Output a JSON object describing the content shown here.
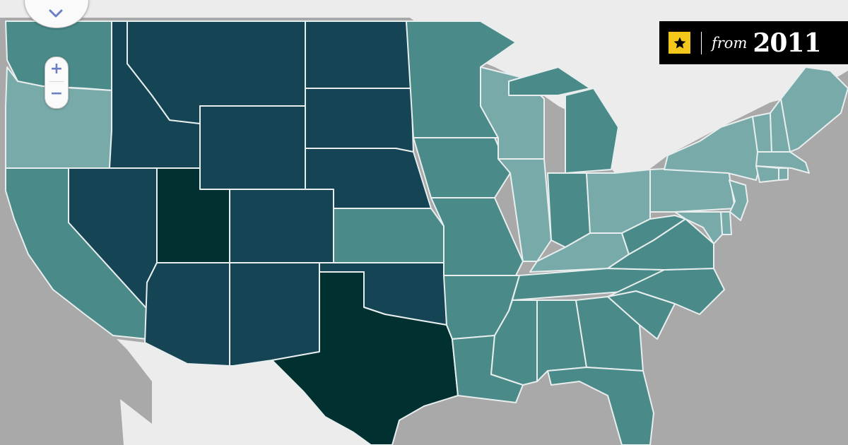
{
  "map": {
    "colors": {
      "land": "#ececec",
      "water": "#a9a9a9",
      "lightest": "#79aaaa",
      "light": "#4a8a88",
      "dark": "#154455",
      "darkest": "#013031",
      "border": "#e8eeee"
    },
    "states": [
      {
        "id": "WA",
        "fill": "#4a8a88"
      },
      {
        "id": "OR",
        "fill": "#79aaaa"
      },
      {
        "id": "CA",
        "fill": "#4a8a88"
      },
      {
        "id": "ID",
        "fill": "#154455"
      },
      {
        "id": "NV",
        "fill": "#154455"
      },
      {
        "id": "MT",
        "fill": "#154455"
      },
      {
        "id": "WY",
        "fill": "#154455"
      },
      {
        "id": "UT",
        "fill": "#013031"
      },
      {
        "id": "AZ",
        "fill": "#154455"
      },
      {
        "id": "CO",
        "fill": "#154455"
      },
      {
        "id": "NM",
        "fill": "#154455"
      },
      {
        "id": "ND",
        "fill": "#154455"
      },
      {
        "id": "SD",
        "fill": "#154455"
      },
      {
        "id": "NE",
        "fill": "#154455"
      },
      {
        "id": "KS",
        "fill": "#4a8a88"
      },
      {
        "id": "OK",
        "fill": "#154455"
      },
      {
        "id": "TX",
        "fill": "#013031"
      },
      {
        "id": "MN",
        "fill": "#4a8a88"
      },
      {
        "id": "IA",
        "fill": "#4a8a88"
      },
      {
        "id": "MO",
        "fill": "#4a8a88"
      },
      {
        "id": "AR",
        "fill": "#4a8a88"
      },
      {
        "id": "LA",
        "fill": "#4a8a88"
      },
      {
        "id": "WI",
        "fill": "#79aaaa"
      },
      {
        "id": "IL",
        "fill": "#79aaaa"
      },
      {
        "id": "MI",
        "fill": "#4a8a88"
      },
      {
        "id": "IN",
        "fill": "#4a8a88"
      },
      {
        "id": "OH",
        "fill": "#79aaaa"
      },
      {
        "id": "KY",
        "fill": "#79aaaa"
      },
      {
        "id": "TN",
        "fill": "#4a8a88"
      },
      {
        "id": "MS",
        "fill": "#4a8a88"
      },
      {
        "id": "AL",
        "fill": "#4a8a88"
      },
      {
        "id": "GA",
        "fill": "#4a8a88"
      },
      {
        "id": "FL",
        "fill": "#4a8a88"
      },
      {
        "id": "SC",
        "fill": "#4a8a88"
      },
      {
        "id": "NC",
        "fill": "#4a8a88"
      },
      {
        "id": "VA",
        "fill": "#4a8a88"
      },
      {
        "id": "WV",
        "fill": "#4a8a88"
      },
      {
        "id": "PA",
        "fill": "#79aaaa"
      },
      {
        "id": "NY",
        "fill": "#79aaaa"
      },
      {
        "id": "NJ",
        "fill": "#79aaaa"
      },
      {
        "id": "DE",
        "fill": "#79aaaa"
      },
      {
        "id": "MD",
        "fill": "#79aaaa"
      },
      {
        "id": "VT",
        "fill": "#79aaaa"
      },
      {
        "id": "NH",
        "fill": "#79aaaa"
      },
      {
        "id": "ME",
        "fill": "#79aaaa"
      },
      {
        "id": "MA",
        "fill": "#79aaaa"
      },
      {
        "id": "CT",
        "fill": "#79aaaa"
      },
      {
        "id": "RI",
        "fill": "#79aaaa"
      }
    ]
  },
  "controls": {
    "pan_icon": "chevron-down-icon",
    "zoom_in_label": "+",
    "zoom_out_label": "−"
  },
  "badge": {
    "icon": "star-icon",
    "icon_color": "#f4c81a",
    "from_text": "from",
    "year_text": "2011"
  }
}
